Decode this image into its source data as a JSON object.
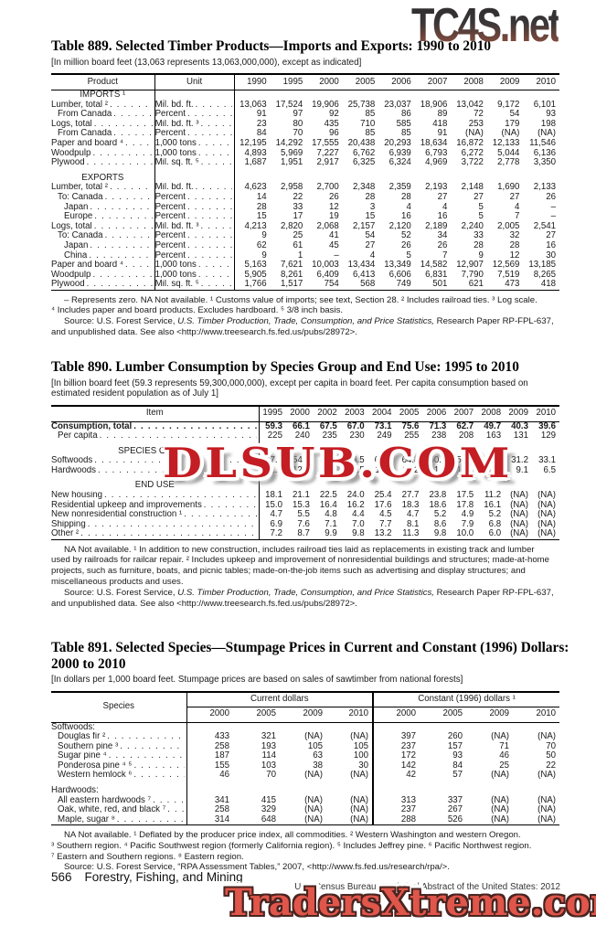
{
  "watermarks": {
    "top": "TC4S.net",
    "middle": "DLSUB.COM",
    "bottom": "TradersXtreme.com"
  },
  "footer": {
    "page_number": "566",
    "section_title": "Forestry, Fishing, and Mining",
    "source_note": "U.S. Census Bureau, Statistical Abstract of the United States: 2012"
  },
  "tables": [
    {
      "id": "889",
      "kind": "unit",
      "title": "Table 889. Selected Timber Products—Imports and Exports: 1990 to 2010",
      "note": "[In million board feet (13,063 represents 13,063,000,000), except as indicated]",
      "col_headers": {
        "product": "Product",
        "unit": "Unit"
      },
      "years": [
        "1990",
        "1995",
        "2000",
        "2005",
        "2006",
        "2007",
        "2008",
        "2009",
        "2010"
      ],
      "rows": [
        {
          "type": "section",
          "label": "IMPORTS ¹"
        },
        {
          "type": "data",
          "indent": 0,
          "label": "Lumber, total ²",
          "unit": "Mil. bd. ft.",
          "values": [
            "13,063",
            "17,524",
            "19,906",
            "25,738",
            "23,037",
            "18,906",
            "13,042",
            "9,172",
            "6,101"
          ]
        },
        {
          "type": "data",
          "indent": 1,
          "label": "From Canada",
          "unit": "Percent",
          "values": [
            "91",
            "97",
            "92",
            "85",
            "86",
            "89",
            "72",
            "54",
            "93"
          ]
        },
        {
          "type": "data",
          "indent": 0,
          "label": "Logs, total",
          "unit": "Mil. bd. ft. ³",
          "values": [
            "23",
            "80",
            "435",
            "710",
            "585",
            "418",
            "253",
            "179",
            "198"
          ]
        },
        {
          "type": "data",
          "indent": 1,
          "label": "From Canada",
          "unit": "Percent",
          "values": [
            "84",
            "70",
            "96",
            "85",
            "85",
            "91",
            "(NA)",
            "(NA)",
            "(NA)"
          ]
        },
        {
          "type": "data",
          "indent": 0,
          "label": "Paper and board ⁴",
          "unit": "1,000 tons",
          "values": [
            "12,195",
            "14,292",
            "17,555",
            "20,438",
            "20,293",
            "18,634",
            "16,872",
            "12,133",
            "11,546"
          ]
        },
        {
          "type": "data",
          "indent": 0,
          "label": "Woodpulp",
          "unit": "1,000 tons",
          "values": [
            "4,893",
            "5,969",
            "7,227",
            "6,762",
            "6,939",
            "6,793",
            "6,272",
            "5,044",
            "6,136"
          ]
        },
        {
          "type": "data",
          "indent": 0,
          "label": "Plywood",
          "unit": "Mil. sq. ft. ⁵",
          "values": [
            "1,687",
            "1,951",
            "2,917",
            "6,325",
            "6,324",
            "4,969",
            "3,722",
            "2,778",
            "3,350"
          ]
        },
        {
          "type": "blank"
        },
        {
          "type": "section",
          "label": "EXPORTS"
        },
        {
          "type": "data",
          "indent": 0,
          "label": "Lumber, total ²",
          "unit": "Mil. bd. ft.",
          "values": [
            "4,623",
            "2,958",
            "2,700",
            "2,348",
            "2,359",
            "2,193",
            "2,148",
            "1,690",
            "2,133"
          ]
        },
        {
          "type": "data",
          "indent": 1,
          "label": "To: Canada",
          "unit": "Percent",
          "values": [
            "14",
            "22",
            "26",
            "28",
            "28",
            "27",
            "27",
            "27",
            "26"
          ]
        },
        {
          "type": "data",
          "indent": 2,
          "label": "Japan",
          "unit": "Percent",
          "values": [
            "28",
            "33",
            "12",
            "3",
            "4",
            "4",
            "5",
            "4",
            "–"
          ]
        },
        {
          "type": "data",
          "indent": 2,
          "label": "Europe",
          "unit": "Percent",
          "values": [
            "15",
            "17",
            "19",
            "15",
            "16",
            "16",
            "5",
            "7",
            "–"
          ]
        },
        {
          "type": "data",
          "indent": 0,
          "label": "Logs, total",
          "unit": "Mil. bd. ft. ³",
          "values": [
            "4,213",
            "2,820",
            "2,068",
            "2,157",
            "2,120",
            "2,189",
            "2,240",
            "2,005",
            "2,541"
          ]
        },
        {
          "type": "data",
          "indent": 1,
          "label": "To: Canada",
          "unit": "Percent",
          "values": [
            "9",
            "25",
            "41",
            "54",
            "52",
            "34",
            "33",
            "32",
            "27"
          ]
        },
        {
          "type": "data",
          "indent": 2,
          "label": "Japan",
          "unit": "Percent",
          "values": [
            "62",
            "61",
            "45",
            "27",
            "26",
            "26",
            "28",
            "28",
            "16"
          ]
        },
        {
          "type": "data",
          "indent": 2,
          "label": "China",
          "unit": "Percent",
          "values": [
            "9",
            "1",
            "–",
            "4",
            "5",
            "7",
            "9",
            "12",
            "30"
          ]
        },
        {
          "type": "data",
          "indent": 0,
          "label": "Paper and board ⁴",
          "unit": "1,000 tons",
          "values": [
            "5,163",
            "7,621",
            "10,003",
            "13,434",
            "13,349",
            "14,582",
            "12,907",
            "12,569",
            "13,185"
          ]
        },
        {
          "type": "data",
          "indent": 0,
          "label": "Woodpulp",
          "unit": "1,000 tons",
          "values": [
            "5,905",
            "8,261",
            "6,409",
            "6,413",
            "6,606",
            "6,831",
            "7,790",
            "7,519",
            "8,265"
          ]
        },
        {
          "type": "data",
          "indent": 0,
          "label": "Plywood",
          "unit": "Mil. sq. ft. ⁵",
          "values": [
            "1,766",
            "1,517",
            "754",
            "568",
            "749",
            "501",
            "621",
            "473",
            "418"
          ]
        }
      ],
      "footnotes": [
        {
          "indent": true,
          "text": "– Represents zero. NA Not available. ¹ Customs value of imports; see text, Section 28. ² Includes railroad ties. ³ Log scale."
        },
        {
          "indent": false,
          "text": "⁴ Includes paper and board products. Excludes hardboard. ⁵ 3/8 inch basis."
        }
      ],
      "source_lines": [
        {
          "indent": true,
          "pre": "Source: U.S. Forest Service, ",
          "italic": "U.S. Timber Production, Trade, Consumption, and Price Statistics,",
          "post": " Research Paper RP-FPL-637,"
        },
        {
          "indent": false,
          "pre": "and unpublished data. See also <http://www.treesearch.fs.fed.us/pubs/28972>.",
          "italic": "",
          "post": ""
        }
      ]
    },
    {
      "id": "890",
      "kind": "plain",
      "title": "Table 890. Lumber Consumption by Species Group and End Use: 1995 to 2010",
      "note": "[In billion board feet (59.3 represents 59,300,000,000), except per capita in board feet. Per capita consumption based on estimated resident population as of July 1]",
      "col_headers": {
        "item": "Item"
      },
      "years": [
        "1995",
        "2000",
        "2002",
        "2003",
        "2004",
        "2005",
        "2006",
        "2007",
        "2008",
        "2009",
        "2010"
      ],
      "rows": [
        {
          "type": "data",
          "indent": 0,
          "bold": true,
          "label": "Consumption, total",
          "values": [
            "59.3",
            "66.1",
            "67.5",
            "67.0",
            "73.1",
            "75.6",
            "71.3",
            "62.7",
            "49.7",
            "40.3",
            "39.6"
          ]
        },
        {
          "type": "data",
          "indent": 1,
          "label": "Per capita",
          "values": [
            "225",
            "240",
            "235",
            "230",
            "249",
            "255",
            "238",
            "208",
            "163",
            "131",
            "129"
          ]
        },
        {
          "type": "blank"
        },
        {
          "type": "section",
          "label": "SPECIES GROUP"
        },
        {
          "type": "data",
          "indent": 0,
          "label": "Softwoods",
          "values": [
            "47.6",
            "54.1",
            "56.1",
            "56.5",
            "62.0",
            "64.4",
            "60.1",
            "52.6",
            "40.7",
            "31.2",
            "33.1"
          ]
        },
        {
          "type": "data",
          "indent": 0,
          "label": "Hardwoods",
          "values": [
            "11.7",
            "12.0",
            "11.4",
            "10.5",
            "11.1",
            "11.2",
            "11.2",
            "10.2",
            "9.0",
            "9.1",
            "6.5"
          ]
        },
        {
          "type": "blank"
        },
        {
          "type": "section",
          "label": "END USE"
        },
        {
          "type": "data",
          "indent": 0,
          "label": "New housing",
          "values": [
            "18.1",
            "21.1",
            "22.5",
            "24.0",
            "25.4",
            "27.7",
            "23.8",
            "17.5",
            "11.2",
            "(NA)",
            "(NA)"
          ]
        },
        {
          "type": "data",
          "indent": 0,
          "label": "Residential upkeep and improvements",
          "values": [
            "15.0",
            "15.3",
            "16.4",
            "16.2",
            "17.6",
            "18.3",
            "18.6",
            "17.8",
            "16.1",
            "(NA)",
            "(NA)"
          ]
        },
        {
          "type": "data",
          "indent": 0,
          "label": "New nonresidential construction ¹",
          "values": [
            "4.7",
            "5.5",
            "4.8",
            "4.4",
            "4.5",
            "4.7",
            "5.2",
            "4.9",
            "5.2",
            "(NA)",
            "(NA)"
          ]
        },
        {
          "type": "data",
          "indent": 0,
          "label": "Shipping",
          "values": [
            "6.9",
            "7.6",
            "7.1",
            "7.0",
            "7.7",
            "8.1",
            "8.6",
            "7.9",
            "6.8",
            "(NA)",
            "(NA)"
          ]
        },
        {
          "type": "data",
          "indent": 0,
          "label": "Other ²",
          "values": [
            "7.2",
            "8.7",
            "9.9",
            "9.8",
            "13.2",
            "11.3",
            "9.8",
            "10.0",
            "6.0",
            "(NA)",
            "(NA)"
          ]
        }
      ],
      "footnotes": [
        {
          "indent": true,
          "text": "NA Not available. ¹ In addition to new construction, includes railroad ties laid as replacements in existing track and lumber"
        },
        {
          "indent": false,
          "text": "used by railroads for railcar repair. ² Includes upkeep and improvement of nonresidential buildings and structures; made-at-home"
        },
        {
          "indent": false,
          "text": "projects, such as  furniture, boats, and picnic tables; made-on-the-job items such as advertising and display structures; and"
        },
        {
          "indent": false,
          "text": "miscellaneous products and uses."
        }
      ],
      "source_lines": [
        {
          "indent": true,
          "pre": "Source: U.S. Forest Service, ",
          "italic": "U.S. Timber Production, Trade, Consumption, and Price Statistics,",
          "post": " Research Paper RP-FPL-637,"
        },
        {
          "indent": false,
          "pre": "and unpublished data. See also <http://www.treesearch.fs.fed.us/pubs/28972>.",
          "italic": "",
          "post": ""
        }
      ]
    },
    {
      "id": "891",
      "kind": "group",
      "title": "Table 891. Selected Species—Stumpage Prices in Current and Constant (1996) Dollars: 2000 to 2010",
      "note": "[In dollars per 1,000 board feet. Stumpage prices are based on sales of sawtimber from national forests]",
      "col_headers": {
        "species": "Species"
      },
      "groups": [
        {
          "label": "Current dollars",
          "years": [
            "2000",
            "2005",
            "2009",
            "2010"
          ]
        },
        {
          "label": "Constant (1996) dollars ¹",
          "years": [
            "2000",
            "2005",
            "2009",
            "2010"
          ]
        }
      ],
      "rows": [
        {
          "type": "section",
          "align": "left",
          "label": "Softwoods:"
        },
        {
          "type": "data",
          "indent": 1,
          "label": "Douglas fir ²",
          "values": [
            "433",
            "321",
            "(NA)",
            "(NA)",
            "397",
            "260",
            "(NA)",
            "(NA)"
          ]
        },
        {
          "type": "data",
          "indent": 1,
          "label": "Southern pine ³",
          "values": [
            "258",
            "193",
            "105",
            "105",
            "237",
            "157",
            "71",
            "70"
          ]
        },
        {
          "type": "data",
          "indent": 1,
          "label": "Sugar pine ⁴",
          "values": [
            "187",
            "114",
            "63",
            "100",
            "172",
            "93",
            "46",
            "50"
          ]
        },
        {
          "type": "data",
          "indent": 1,
          "label": "Ponderosa pine ⁴ ⁵",
          "values": [
            "155",
            "103",
            "38",
            "30",
            "142",
            "84",
            "25",
            "22"
          ]
        },
        {
          "type": "data",
          "indent": 1,
          "label": "Western hemlock ⁶",
          "values": [
            "46",
            "70",
            "(NA)",
            "(NA)",
            "42",
            "57",
            "(NA)",
            "(NA)"
          ]
        },
        {
          "type": "blank"
        },
        {
          "type": "section",
          "align": "left",
          "label": "Hardwoods:"
        },
        {
          "type": "data",
          "indent": 1,
          "label": "All eastern hardwoods ⁷",
          "values": [
            "341",
            "415",
            "(NA)",
            "(NA)",
            "313",
            "337",
            "(NA)",
            "(NA)"
          ]
        },
        {
          "type": "data",
          "indent": 1,
          "label": "Oak, white, red, and black ⁷",
          "values": [
            "258",
            "329",
            "(NA)",
            "(NA)",
            "237",
            "267",
            "(NA)",
            "(NA)"
          ]
        },
        {
          "type": "data",
          "indent": 1,
          "label": "Maple, sugar ⁸",
          "values": [
            "314",
            "648",
            "(NA)",
            "(NA)",
            "288",
            "526",
            "(NA)",
            "(NA)"
          ]
        }
      ],
      "footnotes": [
        {
          "indent": true,
          "text": "NA Not available. ¹ Deflated by the producer price index, all commodities. ² Western Washington and western Oregon."
        },
        {
          "indent": false,
          "text": "³ Southern region. ⁴ Pacific Southwest region (formerly California region). ⁵ Includes Jeffrey pine. ⁶ Pacific Northwest region."
        },
        {
          "indent": false,
          "text": "⁷ Eastern and Southern regions. ⁸ Eastern region."
        }
      ],
      "source_lines": [
        {
          "indent": true,
          "pre": "Source: U.S. Forest Service, “RPA Assessment Tables,” 2007, <http://www.fs.fed.us/research/rpa/>.",
          "italic": "",
          "post": ""
        }
      ]
    }
  ]
}
